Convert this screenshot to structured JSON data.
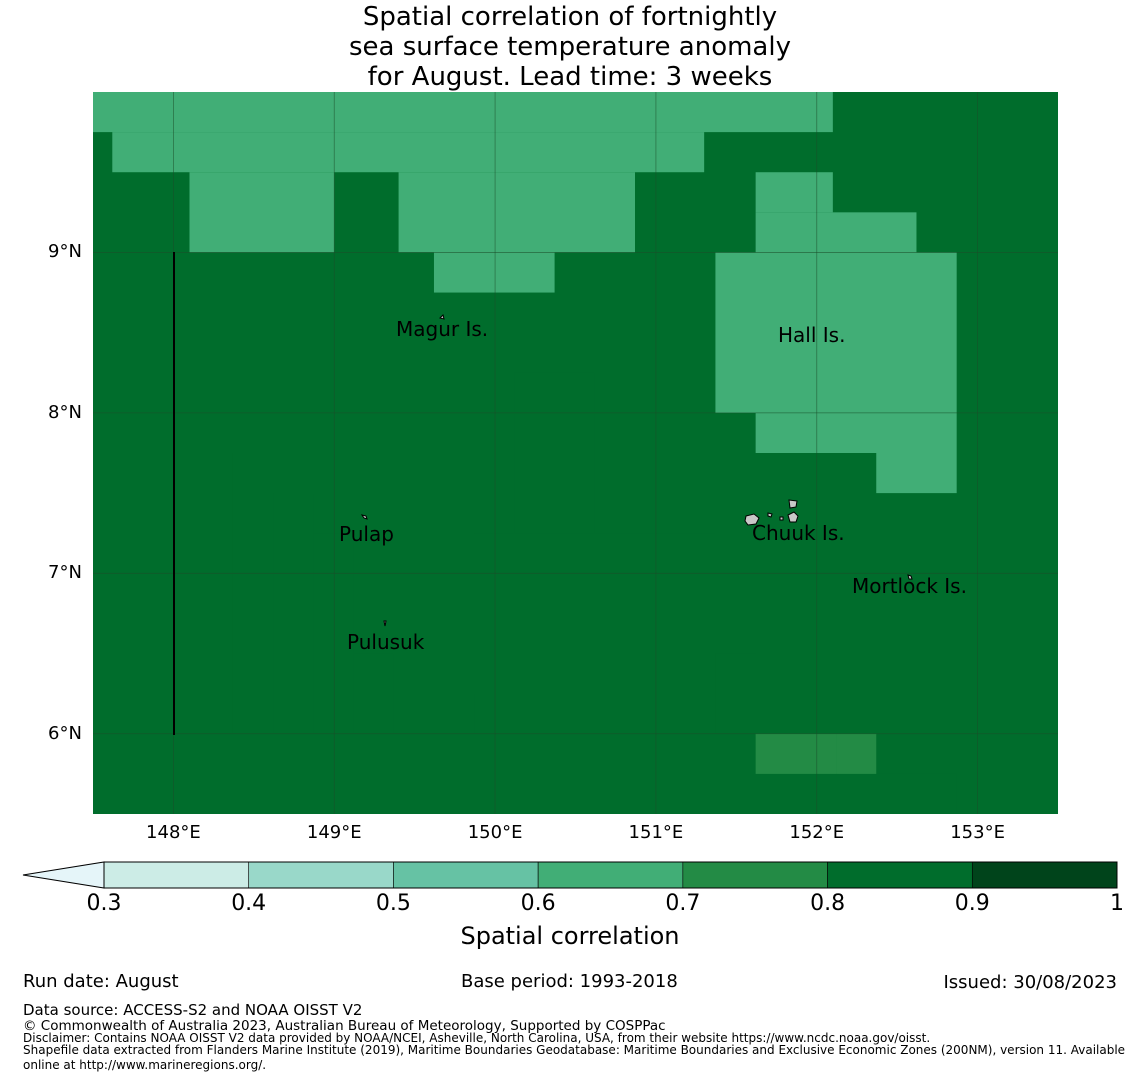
{
  "title_lines": [
    "Spatial correlation of fortnightly",
    "sea surface temperature anomaly",
    "for August. Lead time: 3 weeks"
  ],
  "colors": {
    "bins": [
      "#ccece6",
      "#99d8c9",
      "#66c2a4",
      "#41ae76",
      "#238b45",
      "#006d2c",
      "#00441b"
    ],
    "under": "#e5f5f9",
    "grid": "#1a4d2a",
    "box": "#000000"
  },
  "axes": {
    "lon_range": [
      147.5,
      153.5
    ],
    "lat_range": [
      5.5,
      10.0
    ],
    "x_ticks": [
      {
        "value": 148,
        "label": "148°E"
      },
      {
        "value": 149,
        "label": "149°E"
      },
      {
        "value": 150,
        "label": "150°E"
      },
      {
        "value": 151,
        "label": "151°E"
      },
      {
        "value": 152,
        "label": "152°E"
      },
      {
        "value": 153,
        "label": "153°E"
      }
    ],
    "y_ticks": [
      {
        "value": 9,
        "label": "9°N"
      },
      {
        "value": 8,
        "label": "8°N"
      },
      {
        "value": 7,
        "label": "7°N"
      },
      {
        "value": 6,
        "label": "6°N"
      }
    ]
  },
  "chart_data": {
    "type": "heatmap",
    "variable": "Spatial correlation",
    "cell_deg": 0.25,
    "lon_start": 147.5,
    "lat_top": 10.0,
    "value_by_bin": {
      "4": 0.65,
      "5": 0.75,
      "6": 0.85
    },
    "rows": [
      "DDDDDDDDDDDDDDDDDDDDDDDDDDDDDDDDDDDDDDDDDDDDDDDDDDDDDDDDD",
      "DDDDDDDDDDDDDDDDDDDDDDDDDDDDDDDDDDDDDDDDDDDDDDDDDDDDDDDDD",
      "DDDDDDDDDDDDDDDDDDDDDDDDDDDDDDDDDDDDDDDDDDDDDDDDDDDDDDDD",
      "4444444444444444444444444444444455555555555555555555555555",
      "4444444444444444444444444444444455555555555555555555555555",
      "5444444444444444444444444444445555555555555555555555555555",
      "5444444444444444444444444444445555555555555555555555555555",
      "5544444455544444444444455555555555555555555555555555555555"
    ],
    "grid_rows": [
      "444444444444444444444444444444445555555555555555555555555555",
      "444444444444444444444444444444445555555555555555555555555555",
      "444444444444444444444444444444445555555555555555555555555555",
      "444444444444444444444444444444455555555555555555555555555555",
      "444444444444444444444444444444455555555555555555555555555555",
      "444444444444444444444444444445555555555455555555555555555555",
      "544444444444444444444444444445555555555455555555555555555555",
      "544444444444444444444444444445555555555455555555555555555555",
      "554444455555555444444444444555555555544444555555555555555555",
      "554444455555555444444444444555555555544444555555555555555555",
      "555555555555555544444455555555555555544444444455555555555555",
      "555555555555555544444455555555555555544444444455555555555555",
      "555555555555555555555555555555555555544444444455555555555555",
      "555555555555555555555555555555555555544444444455555555555555",
      "555555555555555555555555555555555555544444444455555555555555",
      "555555555555555555555555555555555555544444444455555555555555",
      "555555555555555555555555555555555555544444444455555555555555",
      "555555555555555555555555555555555555544444444455555555555555",
      "555555555555555555555555555555555555544444444455555555555555",
      "555555555555555555555555555555555555544444444455555555555555"
    ]
  },
  "places": [
    {
      "label": "Magur Is."
    },
    {
      "label": "Hall Is."
    },
    {
      "label": "Pulap"
    },
    {
      "label": "Chuuk Is."
    },
    {
      "label": "Mortlock Is."
    },
    {
      "label": "Pulusuk"
    }
  ],
  "colorbar": {
    "ticks": [
      "0.3",
      "0.4",
      "0.5",
      "0.6",
      "0.7",
      "0.8",
      "0.9",
      "1"
    ],
    "label": "Spatial correlation"
  },
  "footer": {
    "run_date": "Run date: August",
    "base_period": "Base period: 1993-2018",
    "issued": "Issued: 30/08/2023",
    "data_source": "Data source: ACCESS-S2 and NOAA OISST V2",
    "copyright": "© Commonwealth of Australia 2023, Australian Bureau of Meteorology, Supported by COSPPac",
    "disclaimer": "Disclaimer: Contains NOAA OISST V2 data provided by NOAA/NCEI, Asheville, North Carolina, USA, from their website https://www.ncdc.noaa.gov/oisst.",
    "shapefile_line1": "Shapefile data extracted from Flanders Marine Institute (2019), Maritime Boundaries Geodatabase: Maritime Boundaries and Exclusive Economic Zones (200NM), version 11. Available",
    "shapefile_line2": "online at http://www.marineregions.org/."
  }
}
